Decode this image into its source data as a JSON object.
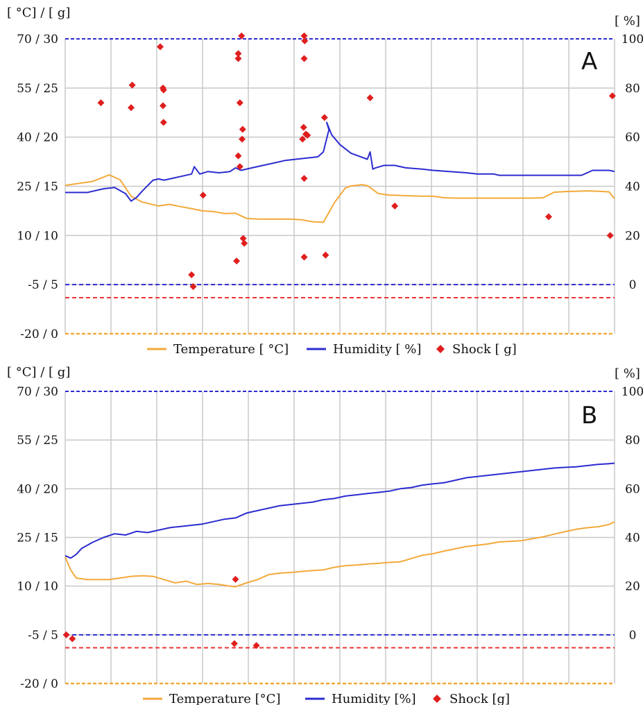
{
  "colors": {
    "temperature": "#f2a93a",
    "humidity": "#2b2bd0",
    "shock": "#e01e1e",
    "grid": "#c8c8c8",
    "humidity_threshold": "#2b2bd0",
    "temperature_threshold": "#ee3333",
    "axis_bottom": "#f2a93a"
  },
  "chart_data": [
    {
      "type": "line",
      "panel_label": "A",
      "left_axis_label": "[ °C] / [ g]",
      "right_axis_label": "[ %]",
      "left_ticks": [
        "70 / 30",
        "55 / 25",
        "40 / 20",
        "25 / 15",
        "10 / 10",
        "-5 / 5",
        "-20 / 0"
      ],
      "right_ticks": [
        "100",
        "80",
        "60",
        "40",
        "20",
        "0"
      ],
      "ylim_temperature": [
        -20,
        70
      ],
      "ylim_shock": [
        0,
        30
      ],
      "ylim_humidity": [
        -20,
        100
      ],
      "xlim": [
        0,
        100
      ],
      "vertical_gridlines": 12,
      "grid": true,
      "legend_position": "bottom",
      "legend": [
        "Temperature [ °C]",
        "Humidity [ %]",
        "Shock [ g]"
      ],
      "thresholds": {
        "humidity": 0,
        "temperature": -9
      },
      "series": [
        {
          "name": "Temperature [ °C]",
          "x": [
            0,
            5,
            8,
            10,
            12,
            14,
            17,
            19,
            21,
            23,
            25,
            27,
            29,
            31,
            33,
            35,
            37,
            39,
            41,
            43,
            45,
            47,
            49,
            51,
            52,
            53,
            54,
            55,
            57,
            59,
            60,
            61,
            63,
            65,
            67,
            69,
            71,
            73,
            75,
            77,
            79,
            81,
            83,
            85,
            87,
            89,
            91,
            93,
            95,
            97,
            99,
            100
          ],
          "values": [
            25.3,
            26.5,
            28.5,
            27.0,
            22.0,
            20.2,
            19.0,
            19.5,
            18.8,
            18.2,
            17.5,
            17.3,
            16.7,
            16.8,
            15.2,
            15.0,
            15.0,
            15.0,
            15.0,
            14.8,
            14.2,
            14.0,
            20.0,
            24.5,
            25.1,
            25.3,
            25.5,
            25.2,
            22.8,
            22.3,
            22.3,
            22.2,
            22.1,
            22.0,
            22.0,
            21.5,
            21.4,
            21.4,
            21.4,
            21.4,
            21.4,
            21.4,
            21.4,
            21.4,
            21.5,
            23.2,
            23.4,
            23.5,
            23.6,
            23.5,
            23.3,
            21.2
          ]
        },
        {
          "name": "Humidity [ %]",
          "x": [
            0,
            4,
            7,
            9,
            11,
            12,
            13,
            14,
            16,
            17,
            18,
            20,
            23,
            23.5,
            24.5,
            26,
            28,
            30,
            31,
            32,
            34,
            36,
            38,
            40,
            42,
            44,
            46,
            47,
            48,
            47.6,
            48.5,
            50,
            52,
            55,
            55.5,
            56,
            56.5,
            58,
            60,
            62,
            65,
            67,
            70,
            73,
            75,
            77,
            78,
            79,
            80,
            82,
            84,
            86,
            88,
            90,
            92,
            94,
            96,
            98,
            99,
            100
          ],
          "values": [
            37.5,
            37.5,
            39.0,
            39.5,
            37.0,
            34.0,
            35.5,
            38.0,
            42.5,
            43.0,
            42.5,
            43.5,
            45.0,
            48.0,
            45.0,
            46.0,
            45.5,
            46.0,
            47.5,
            46.5,
            47.5,
            48.5,
            49.5,
            50.5,
            51.0,
            51.5,
            52.0,
            54.0,
            63.0,
            66.0,
            61.0,
            57.0,
            53.5,
            51.0,
            54.0,
            47.0,
            47.5,
            48.5,
            48.5,
            47.5,
            47.0,
            46.5,
            46.0,
            45.5,
            45.0,
            45.0,
            45.0,
            44.5,
            44.5,
            44.5,
            44.5,
            44.5,
            44.5,
            44.5,
            44.5,
            44.5,
            46.5,
            46.5,
            46.5,
            46.0
          ]
        }
      ],
      "shock_points": {
        "name": "Shock [ g]",
        "x": [
          6.5,
          12.2,
          12.0,
          17.3,
          17.8,
          17.9,
          17.8,
          17.9,
          23.0,
          23.3,
          25.1,
          31.5,
          31.5,
          31.8,
          31.8,
          31.5,
          31.2,
          32.1,
          32.2,
          32.3,
          32.4,
          32.6,
          43.5,
          43.6,
          43.5,
          43.2,
          43.4,
          43.8,
          44.1,
          43.5,
          43.5,
          47.2,
          47.4,
          55.5,
          60.0,
          88.0,
          99.6,
          99.2
        ],
        "values": [
          23.5,
          25.3,
          23.0,
          29.2,
          23.2,
          24.8,
          25.0,
          21.5,
          6.0,
          4.8,
          14.1,
          28.0,
          28.5,
          23.5,
          17.0,
          18.1,
          7.4,
          30.3,
          19.8,
          20.8,
          9.7,
          9.2,
          30.3,
          29.8,
          28.0,
          19.8,
          21.0,
          20.3,
          20.2,
          7.8,
          15.8,
          22.0,
          8.0,
          24.0,
          13.0,
          11.9,
          24.2,
          10.0
        ]
      }
    },
    {
      "type": "line",
      "panel_label": "B",
      "left_axis_label": "[ °C] / [ g]",
      "right_axis_label": "[ %]",
      "left_ticks": [
        "70 / 30",
        "55 / 25",
        "40 / 20",
        "25 / 15",
        "10 / 10",
        "-5 / 5",
        "-20 / 0"
      ],
      "right_ticks": [
        "100",
        "80",
        "60",
        "40",
        "20",
        "0"
      ],
      "ylim_temperature": [
        -20,
        70
      ],
      "ylim_shock": [
        0,
        30
      ],
      "ylim_humidity": [
        -20,
        100
      ],
      "xlim": [
        0,
        100
      ],
      "vertical_gridlines": 12,
      "grid": true,
      "legend_position": "bottom",
      "legend": [
        "Temperature [°C]",
        "Humidity [%]",
        "Shock [g]"
      ],
      "thresholds": {
        "humidity": 0,
        "temperature": -9
      },
      "series": [
        {
          "name": "Temperature [°C]",
          "x": [
            0,
            1,
            2,
            4,
            6,
            8,
            10,
            12,
            14,
            16,
            18,
            20,
            22,
            24,
            26,
            28,
            30,
            31,
            33,
            35,
            37,
            39,
            41,
            43,
            45,
            47,
            49,
            51,
            53,
            55,
            57,
            59,
            61,
            63,
            65,
            67,
            69,
            71,
            73,
            75,
            77,
            79,
            81,
            83,
            85,
            87,
            89,
            91,
            93,
            95,
            97,
            99,
            100
          ],
          "values": [
            19.0,
            15.0,
            12.5,
            12.0,
            12.0,
            12.0,
            12.5,
            13.0,
            13.2,
            13.0,
            12.0,
            11.0,
            11.5,
            10.5,
            10.8,
            10.5,
            10.0,
            9.8,
            11.0,
            12.0,
            13.5,
            14.0,
            14.2,
            14.5,
            14.8,
            15.0,
            15.8,
            16.3,
            16.5,
            16.8,
            17.0,
            17.3,
            17.5,
            18.5,
            19.5,
            20.0,
            20.8,
            21.5,
            22.2,
            22.6,
            23.0,
            23.6,
            23.8,
            24.0,
            24.6,
            25.2,
            26.0,
            26.8,
            27.5,
            28.0,
            28.3,
            29.0,
            29.8
          ]
        },
        {
          "name": "Humidity [%]",
          "x": [
            0,
            1,
            2,
            3,
            5,
            7,
            9,
            11,
            13,
            15,
            17,
            19,
            21,
            23,
            25,
            27,
            29,
            31,
            33,
            35,
            37,
            39,
            41,
            43,
            45,
            47,
            49,
            51,
            53,
            55,
            57,
            59,
            61,
            63,
            65,
            67,
            69,
            71,
            73,
            75,
            77,
            79,
            81,
            83,
            85,
            87,
            89,
            91,
            93,
            95,
            97,
            99,
            100
          ],
          "values": [
            32.5,
            31.5,
            33.0,
            35.5,
            38.0,
            40.0,
            41.5,
            41.0,
            42.5,
            42.0,
            43.0,
            44.0,
            44.5,
            45.0,
            45.5,
            46.5,
            47.5,
            48.0,
            50.0,
            51.0,
            52.0,
            53.0,
            53.5,
            54.0,
            54.5,
            55.5,
            56.0,
            57.0,
            57.5,
            58.0,
            58.5,
            59.0,
            60.0,
            60.5,
            61.5,
            62.0,
            62.5,
            63.5,
            64.5,
            65.0,
            65.5,
            66.0,
            66.5,
            67.0,
            67.5,
            68.0,
            68.5,
            68.8,
            69.0,
            69.5,
            70.0,
            70.3,
            70.5
          ]
        }
      ],
      "shock_points": {
        "name": "Shock [g]",
        "x": [
          0.2,
          1.3,
          31.0,
          30.8,
          34.8
        ],
        "values": [
          5.0,
          4.6,
          10.7,
          4.1,
          3.9
        ]
      }
    }
  ]
}
